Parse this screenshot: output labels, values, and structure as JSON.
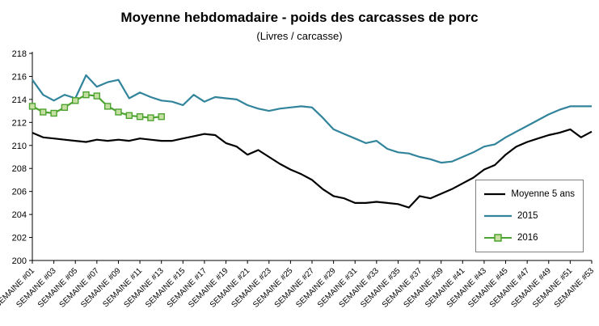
{
  "title": "Moyenne hebdomadaire - poids des carcasses de porc",
  "subtitle": "(Livres / carcasse)",
  "legend": {
    "items": [
      {
        "label": "Moyenne 5 ans",
        "color": "#000000",
        "marker": "none"
      },
      {
        "label": "2015",
        "color": "#31849B",
        "marker": "none"
      },
      {
        "label": "2016",
        "color": "#4DA32F",
        "marker": "square",
        "marker_fill": "#C6E0A4"
      }
    ]
  },
  "chart_data": {
    "type": "line",
    "categories": [
      "SEMAINE #01",
      "SEMAINE #02",
      "SEMAINE #03",
      "SEMAINE #04",
      "SEMAINE #05",
      "SEMAINE #06",
      "SEMAINE #07",
      "SEMAINE #08",
      "SEMAINE #09",
      "SEMAINE #10",
      "SEMAINE #11",
      "SEMAINE #12",
      "SEMAINE #13",
      "SEMAINE #14",
      "SEMAINE #15",
      "SEMAINE #16",
      "SEMAINE #17",
      "SEMAINE #18",
      "SEMAINE #19",
      "SEMAINE #20",
      "SEMAINE #21",
      "SEMAINE #22",
      "SEMAINE #23",
      "SEMAINE #24",
      "SEMAINE #25",
      "SEMAINE #26",
      "SEMAINE #27",
      "SEMAINE #28",
      "SEMAINE #29",
      "SEMAINE #30",
      "SEMAINE #31",
      "SEMAINE #32",
      "SEMAINE #33",
      "SEMAINE #34",
      "SEMAINE #35",
      "SEMAINE #36",
      "SEMAINE #37",
      "SEMAINE #38",
      "SEMAINE #39",
      "SEMAINE #40",
      "SEMAINE #41",
      "SEMAINE #42",
      "SEMAINE #43",
      "SEMAINE #44",
      "SEMAINE #45",
      "SEMAINE #46",
      "SEMAINE #47",
      "SEMAINE #48",
      "SEMAINE #49",
      "SEMAINE #50",
      "SEMAINE #51",
      "SEMAINE #52",
      "SEMAINE #53"
    ],
    "x_tick_step": 2,
    "ylim": [
      200,
      218
    ],
    "y_tick_step": 2,
    "grid": false,
    "legend_position": "inside-right",
    "series": [
      {
        "name": "Moyenne 5 ans",
        "color": "#000000",
        "marker": "none",
        "values": [
          211.1,
          210.7,
          210.6,
          210.5,
          210.4,
          210.3,
          210.5,
          210.4,
          210.5,
          210.4,
          210.6,
          210.5,
          210.4,
          210.4,
          210.6,
          210.8,
          211.0,
          210.9,
          210.2,
          209.9,
          209.2,
          209.6,
          209.0,
          208.4,
          207.9,
          207.5,
          207.0,
          206.2,
          205.6,
          205.4,
          205.0,
          205.0,
          205.1,
          205.0,
          204.9,
          204.6,
          205.6,
          205.4,
          205.8,
          206.2,
          206.7,
          207.2,
          207.9,
          208.3,
          209.2,
          209.9,
          210.3,
          210.6,
          210.9,
          211.1,
          211.4,
          210.7,
          211.2
        ]
      },
      {
        "name": "2015",
        "color": "#31849B",
        "marker": "none",
        "values": [
          215.7,
          214.4,
          213.9,
          214.4,
          214.1,
          216.1,
          215.1,
          215.5,
          215.7,
          214.1,
          214.6,
          214.2,
          213.9,
          213.8,
          213.5,
          214.4,
          213.8,
          214.2,
          214.1,
          214.0,
          213.5,
          213.2,
          213.0,
          213.2,
          213.3,
          213.4,
          213.3,
          212.4,
          211.4,
          211.0,
          210.6,
          210.2,
          210.4,
          209.7,
          209.4,
          209.3,
          209.0,
          208.8,
          208.5,
          208.6,
          209.0,
          209.4,
          209.9,
          210.1,
          210.7,
          211.2,
          211.7,
          212.2,
          212.7,
          213.1,
          213.4,
          213.4,
          213.4
        ]
      },
      {
        "name": "2016",
        "color": "#4DA32F",
        "marker": "square",
        "marker_fill": "#C6E0A4",
        "values": [
          213.4,
          212.9,
          212.8,
          213.3,
          213.9,
          214.4,
          214.3,
          213.4,
          212.9,
          212.6,
          212.5,
          212.4,
          212.5
        ]
      }
    ]
  }
}
